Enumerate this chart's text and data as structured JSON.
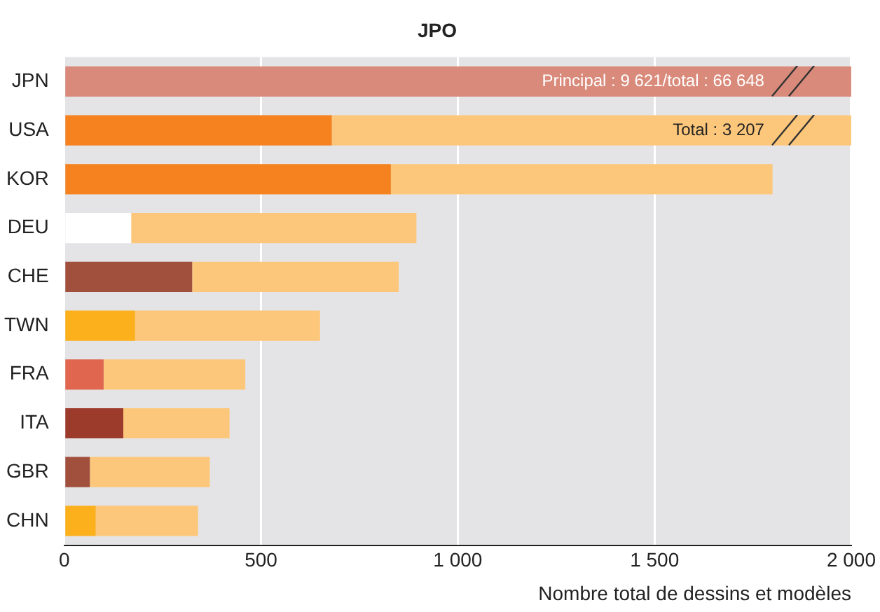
{
  "chart_data": {
    "type": "bar",
    "orientation": "horizontal",
    "stacked": true,
    "title": "JPO",
    "xlabel": "Nombre total de dessins et modèles",
    "categories": [
      "JPN",
      "USA",
      "KOR",
      "DEU",
      "CHE",
      "TWN",
      "FRA",
      "ITA",
      "GBR",
      "CHN"
    ],
    "series": [
      {
        "colors": [
          "#d98a7a",
          "#f5821f",
          "#f5821f",
          "#ffffff",
          "#a0503c",
          "#fbb01c",
          "#e06650",
          "#9c3a2b",
          "#a0503c",
          "#fbb01c"
        ],
        "values": [
          2000,
          680,
          830,
          170,
          325,
          180,
          100,
          150,
          65,
          80
        ]
      },
      {
        "color": "#fdc77b",
        "values": [
          null,
          1320,
          970,
          725,
          525,
          470,
          360,
          270,
          305,
          260
        ]
      }
    ],
    "xlim": [
      0,
      2000
    ],
    "xticks": [
      0,
      {
        "value": 500,
        "label": "500"
      },
      {
        "value": 1000,
        "label": "1 000"
      },
      {
        "value": 1500,
        "label": "1 500"
      },
      {
        "value": 2000,
        "label": "2 000"
      }
    ],
    "grid": "x",
    "legend": false,
    "annotations": [
      "Principal : 9 621/total : 66 648",
      "Total : 3 207"
    ]
  }
}
